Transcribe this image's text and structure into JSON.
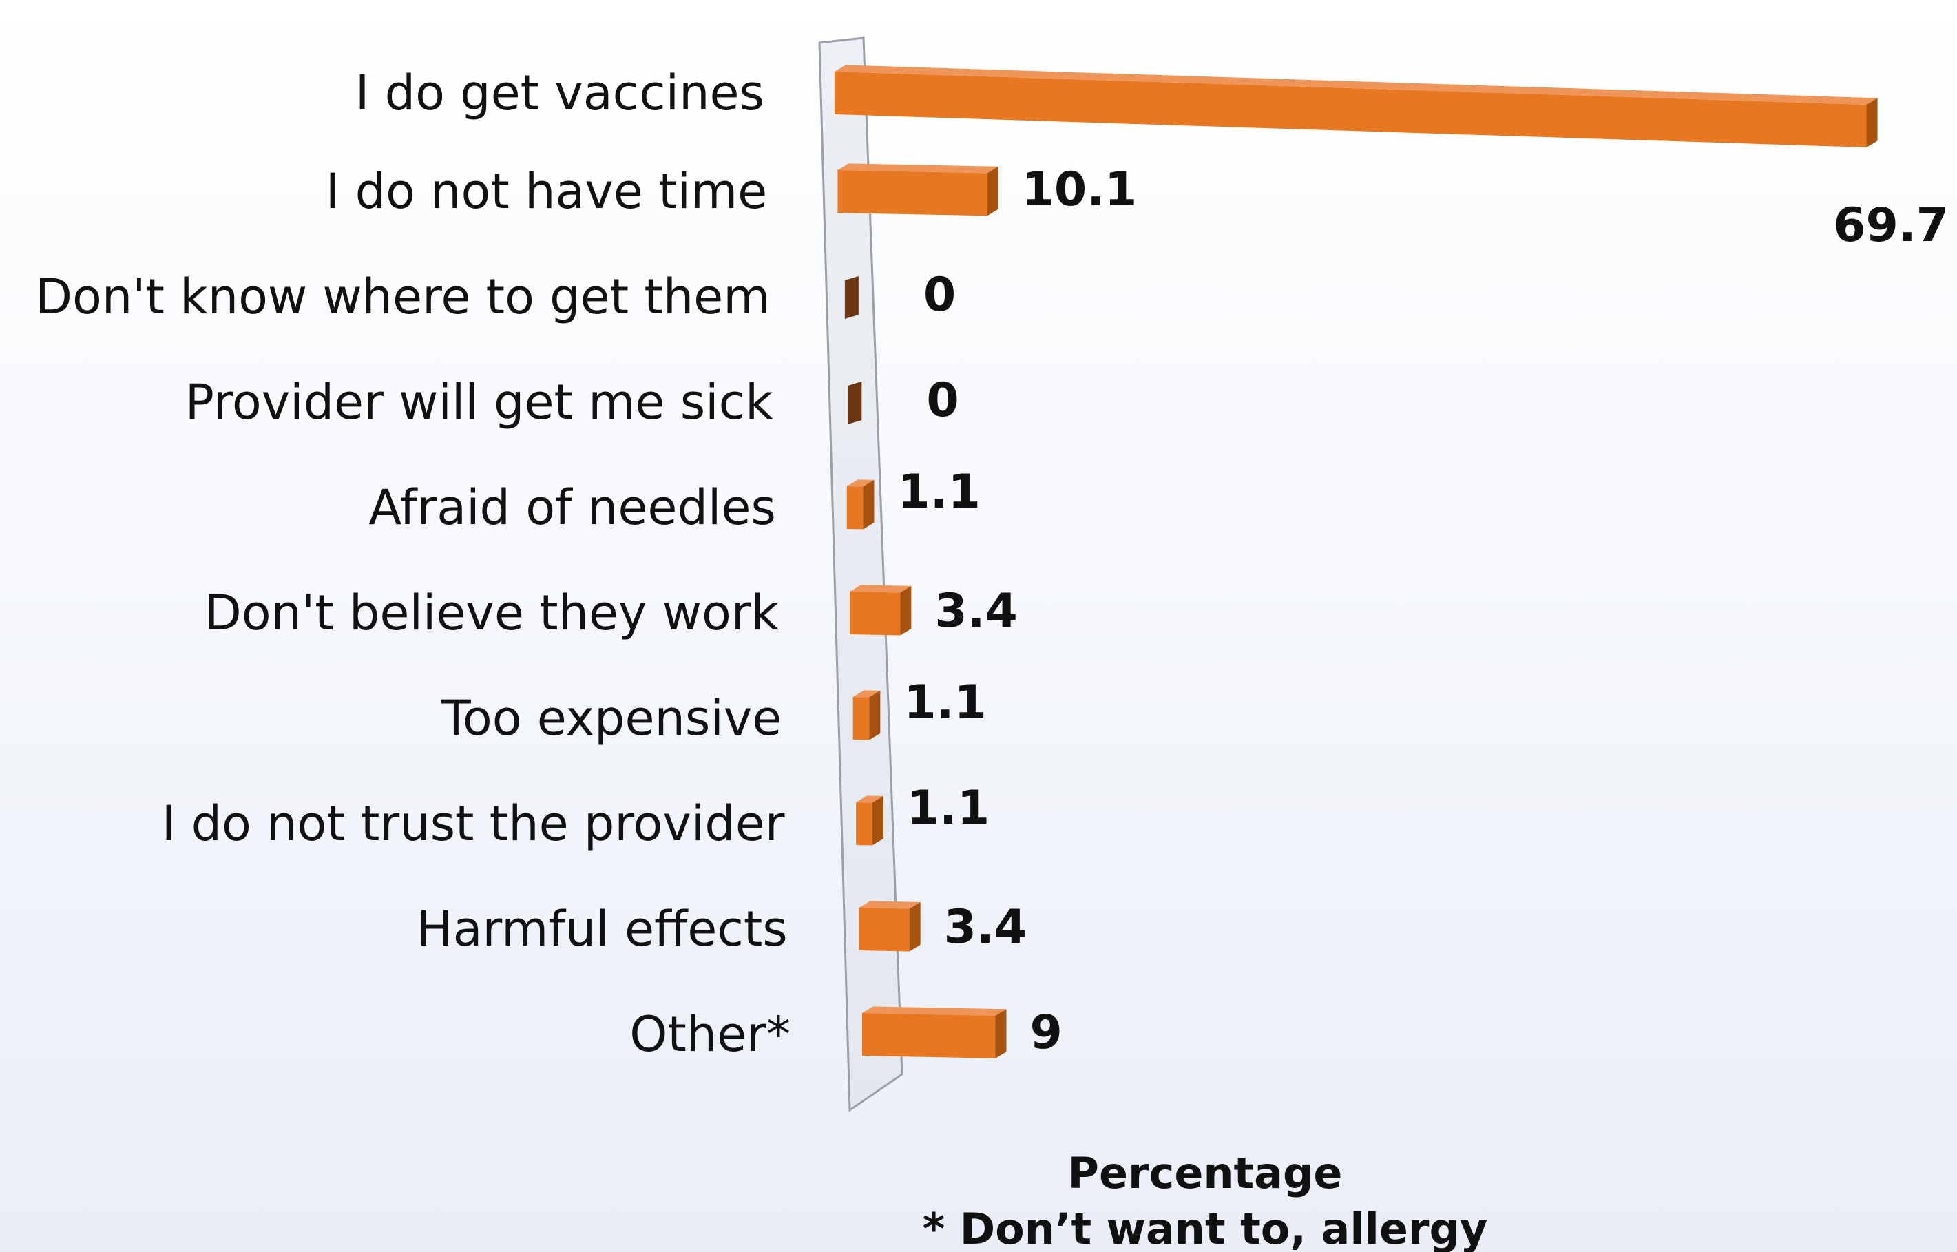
{
  "chart_data": {
    "type": "bar",
    "orientation": "horizontal",
    "style": "3d",
    "categories": [
      "I do get vaccines",
      "I do not have time",
      "Don't know where to get them",
      "Provider will get me sick",
      "Afraid of needles",
      "Don't believe they work",
      "Too expensive",
      "I do not trust the provider",
      "Harmful effects",
      "Other*"
    ],
    "values": [
      69.7,
      10.1,
      0,
      0,
      1.1,
      3.4,
      1.1,
      1.1,
      3.4,
      9
    ],
    "value_labels": [
      "69.7",
      "10.1",
      "0",
      "0",
      "1.1",
      "3.4",
      "1.1",
      "1.1",
      "3.4",
      "9"
    ],
    "xlabel": "Percentage",
    "footnote": "* Don’t want to, allergy",
    "xlim": [
      0,
      70
    ],
    "grid": false,
    "legend": "none",
    "colors": {
      "bar_front": "#e87722",
      "bar_top": "#f0955a",
      "bar_side": "#a8520f",
      "zero_bar": "#6b3610",
      "axis_wall": "#dde2ea",
      "axis_wall_stroke": "#9aa0aa"
    }
  }
}
